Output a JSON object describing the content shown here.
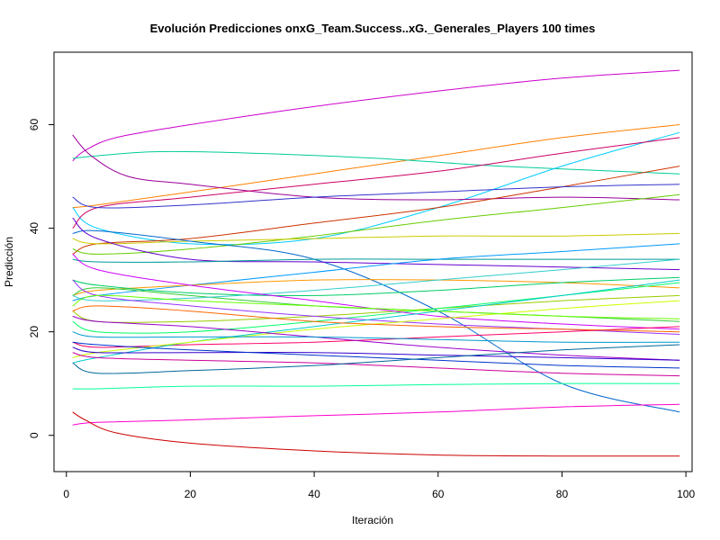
{
  "chart_data": {
    "type": "line",
    "title": "Evolución Predicciones onxG_Team.Success..xG._Generales_Players 100 times",
    "xlabel": "Iteración",
    "ylabel": "Predicción",
    "xlim": [
      -2,
      101
    ],
    "ylim": [
      -7,
      74
    ],
    "xticks": [
      0,
      20,
      40,
      60,
      80,
      100
    ],
    "yticks": [
      0,
      20,
      40,
      60
    ],
    "grid": false,
    "legend": "none",
    "series": [
      {
        "color": "#cc00cc",
        "points": [
          [
            1,
            53
          ],
          [
            3,
            55
          ],
          [
            8,
            57.5
          ],
          [
            20,
            60
          ],
          [
            40,
            63.5
          ],
          [
            60,
            66.5
          ],
          [
            80,
            69
          ],
          [
            99,
            70.5
          ]
        ]
      },
      {
        "color": "#ff8000",
        "points": [
          [
            1,
            44
          ],
          [
            5,
            44.5
          ],
          [
            20,
            47
          ],
          [
            40,
            50.5
          ],
          [
            60,
            54
          ],
          [
            80,
            57.5
          ],
          [
            99,
            60
          ]
        ]
      },
      {
        "color": "#00cc99",
        "points": [
          [
            1,
            53.5
          ],
          [
            5,
            54
          ],
          [
            15,
            54.8
          ],
          [
            30,
            54.5
          ],
          [
            50,
            53.5
          ],
          [
            70,
            52
          ],
          [
            99,
            50.5
          ]
        ]
      },
      {
        "color": "#00ccff",
        "points": [
          [
            1,
            44
          ],
          [
            5,
            40
          ],
          [
            20,
            37
          ],
          [
            40,
            38
          ],
          [
            60,
            44
          ],
          [
            80,
            52
          ],
          [
            99,
            58.5
          ]
        ]
      },
      {
        "color": "#990099",
        "points": [
          [
            1,
            58
          ],
          [
            4,
            54
          ],
          [
            10,
            50
          ],
          [
            20,
            48.5
          ],
          [
            40,
            46
          ],
          [
            60,
            45.5
          ],
          [
            80,
            46
          ],
          [
            99,
            45.5
          ]
        ]
      },
      {
        "color": "#cc0066",
        "points": [
          [
            1,
            40
          ],
          [
            5,
            44
          ],
          [
            20,
            46
          ],
          [
            40,
            48.5
          ],
          [
            60,
            51
          ],
          [
            80,
            54.5
          ],
          [
            99,
            57.5
          ]
        ]
      },
      {
        "color": "#cc3300",
        "points": [
          [
            1,
            35
          ],
          [
            5,
            37
          ],
          [
            20,
            38
          ],
          [
            40,
            41
          ],
          [
            60,
            44
          ],
          [
            80,
            48
          ],
          [
            99,
            52
          ]
        ]
      },
      {
        "color": "#3333cc",
        "points": [
          [
            1,
            46
          ],
          [
            5,
            44
          ],
          [
            20,
            44.5
          ],
          [
            40,
            46
          ],
          [
            60,
            47
          ],
          [
            80,
            48
          ],
          [
            99,
            48.5
          ]
        ]
      },
      {
        "color": "#66cc00",
        "points": [
          [
            1,
            36
          ],
          [
            5,
            35
          ],
          [
            20,
            36
          ],
          [
            40,
            38.5
          ],
          [
            60,
            41.5
          ],
          [
            80,
            44
          ],
          [
            99,
            46.5
          ]
        ]
      },
      {
        "color": "#cccc00",
        "points": [
          [
            1,
            38
          ],
          [
            5,
            37
          ],
          [
            20,
            37.5
          ],
          [
            40,
            38
          ],
          [
            60,
            38.5
          ],
          [
            80,
            38.5
          ],
          [
            99,
            39
          ]
        ]
      },
      {
        "color": "#0066cc",
        "points": [
          [
            1,
            39
          ],
          [
            5,
            39.5
          ],
          [
            20,
            37.5
          ],
          [
            40,
            34
          ],
          [
            60,
            24
          ],
          [
            80,
            10
          ],
          [
            99,
            4.5
          ]
        ]
      },
      {
        "color": "#6600cc",
        "points": [
          [
            1,
            42
          ],
          [
            5,
            38
          ],
          [
            20,
            34
          ],
          [
            40,
            33.5
          ],
          [
            60,
            33
          ],
          [
            80,
            32.5
          ],
          [
            99,
            32
          ]
        ]
      },
      {
        "color": "#009999",
        "points": [
          [
            1,
            34
          ],
          [
            5,
            33.5
          ],
          [
            20,
            33.5
          ],
          [
            40,
            34
          ],
          [
            60,
            34
          ],
          [
            80,
            34
          ],
          [
            99,
            34
          ]
        ]
      },
      {
        "color": "#0099ff",
        "points": [
          [
            1,
            26
          ],
          [
            5,
            27
          ],
          [
            20,
            29
          ],
          [
            40,
            31.5
          ],
          [
            60,
            34
          ],
          [
            80,
            35.5
          ],
          [
            99,
            37
          ]
        ]
      },
      {
        "color": "#ff9900",
        "points": [
          [
            1,
            27
          ],
          [
            5,
            28
          ],
          [
            20,
            29
          ],
          [
            40,
            30
          ],
          [
            60,
            30
          ],
          [
            80,
            29.5
          ],
          [
            99,
            28.5
          ]
        ]
      },
      {
        "color": "#00cc66",
        "points": [
          [
            1,
            30
          ],
          [
            5,
            29
          ],
          [
            20,
            27.5
          ],
          [
            40,
            27
          ],
          [
            60,
            28
          ],
          [
            80,
            29.5
          ],
          [
            99,
            30.5
          ]
        ]
      },
      {
        "color": "#33cc33",
        "points": [
          [
            1,
            27
          ],
          [
            5,
            28.5
          ],
          [
            20,
            27
          ],
          [
            40,
            25
          ],
          [
            60,
            24
          ],
          [
            80,
            23
          ],
          [
            99,
            22
          ]
        ]
      },
      {
        "color": "#99cc00",
        "points": [
          [
            1,
            24
          ],
          [
            5,
            22
          ],
          [
            20,
            22
          ],
          [
            40,
            23
          ],
          [
            60,
            24.5
          ],
          [
            80,
            26
          ],
          [
            99,
            27
          ]
        ]
      },
      {
        "color": "#00ff66",
        "points": [
          [
            1,
            22
          ],
          [
            5,
            20
          ],
          [
            20,
            20
          ],
          [
            40,
            22
          ],
          [
            60,
            24.5
          ],
          [
            80,
            27
          ],
          [
            99,
            29.5
          ]
        ]
      },
      {
        "color": "#33cccc",
        "points": [
          [
            1,
            27
          ],
          [
            5,
            26
          ],
          [
            20,
            26.5
          ],
          [
            40,
            28
          ],
          [
            60,
            30
          ],
          [
            80,
            32
          ],
          [
            99,
            34
          ]
        ]
      },
      {
        "color": "#cc00ff",
        "points": [
          [
            1,
            35
          ],
          [
            5,
            32
          ],
          [
            20,
            29
          ],
          [
            40,
            26
          ],
          [
            60,
            23
          ],
          [
            80,
            21.5
          ],
          [
            99,
            20.5
          ]
        ]
      },
      {
        "color": "#9933ff",
        "points": [
          [
            1,
            30
          ],
          [
            5,
            27
          ],
          [
            20,
            25
          ],
          [
            40,
            23
          ],
          [
            60,
            21.5
          ],
          [
            80,
            20.5
          ],
          [
            99,
            19.5
          ]
        ]
      },
      {
        "color": "#ff0066",
        "points": [
          [
            1,
            18
          ],
          [
            5,
            17
          ],
          [
            20,
            17.5
          ],
          [
            40,
            18
          ],
          [
            60,
            19
          ],
          [
            80,
            20
          ],
          [
            99,
            21
          ]
        ]
      },
      {
        "color": "#00cccc",
        "points": [
          [
            1,
            14
          ],
          [
            5,
            15
          ],
          [
            20,
            18
          ],
          [
            40,
            21
          ],
          [
            60,
            24
          ],
          [
            80,
            27
          ],
          [
            99,
            30
          ]
        ]
      },
      {
        "color": "#ccff00",
        "points": [
          [
            1,
            15
          ],
          [
            5,
            16
          ],
          [
            20,
            18
          ],
          [
            40,
            20.5
          ],
          [
            60,
            22.5
          ],
          [
            80,
            24.5
          ],
          [
            99,
            26
          ]
        ]
      },
      {
        "color": "#9900cc",
        "points": [
          [
            1,
            23
          ],
          [
            5,
            22
          ],
          [
            20,
            21
          ],
          [
            40,
            19
          ],
          [
            60,
            17
          ],
          [
            80,
            15.5
          ],
          [
            99,
            14.5
          ]
        ]
      },
      {
        "color": "#3300cc",
        "points": [
          [
            1,
            17
          ],
          [
            5,
            16
          ],
          [
            20,
            16
          ],
          [
            40,
            16
          ],
          [
            60,
            15.5
          ],
          [
            80,
            15
          ],
          [
            99,
            14.5
          ]
        ]
      },
      {
        "color": "#0033cc",
        "points": [
          [
            1,
            18
          ],
          [
            5,
            17.5
          ],
          [
            20,
            16.5
          ],
          [
            40,
            15.5
          ],
          [
            60,
            14.5
          ],
          [
            80,
            13.5
          ],
          [
            99,
            13
          ]
        ]
      },
      {
        "color": "#cc0099",
        "points": [
          [
            1,
            16
          ],
          [
            5,
            15
          ],
          [
            20,
            14.5
          ],
          [
            40,
            14
          ],
          [
            60,
            13
          ],
          [
            80,
            12
          ],
          [
            99,
            11.5
          ]
        ]
      },
      {
        "color": "#006699",
        "points": [
          [
            1,
            14
          ],
          [
            5,
            12
          ],
          [
            20,
            12.5
          ],
          [
            40,
            13.5
          ],
          [
            60,
            15
          ],
          [
            80,
            16.5
          ],
          [
            99,
            17.5
          ]
        ]
      },
      {
        "color": "#00ff99",
        "points": [
          [
            1,
            9
          ],
          [
            5,
            9
          ],
          [
            20,
            9.5
          ],
          [
            40,
            9.5
          ],
          [
            60,
            9.8
          ],
          [
            80,
            10
          ],
          [
            99,
            10
          ]
        ]
      },
      {
        "color": "#ff00cc",
        "points": [
          [
            1,
            2
          ],
          [
            5,
            2.5
          ],
          [
            20,
            3
          ],
          [
            40,
            3.8
          ],
          [
            60,
            4.5
          ],
          [
            80,
            5.5
          ],
          [
            99,
            6
          ]
        ]
      },
      {
        "color": "#cc0000",
        "points": [
          [
            1,
            4.5
          ],
          [
            3,
            3
          ],
          [
            8,
            0.5
          ],
          [
            20,
            -1.5
          ],
          [
            40,
            -3
          ],
          [
            60,
            -3.8
          ],
          [
            80,
            -4
          ],
          [
            99,
            -4
          ]
        ]
      },
      {
        "color": "#ff6600",
        "points": [
          [
            1,
            24
          ],
          [
            5,
            25
          ],
          [
            20,
            24
          ],
          [
            40,
            22
          ],
          [
            60,
            21
          ],
          [
            80,
            20.5
          ],
          [
            99,
            20
          ]
        ]
      },
      {
        "color": "#66ff00",
        "points": [
          [
            1,
            25
          ],
          [
            5,
            27
          ],
          [
            20,
            26
          ],
          [
            40,
            25
          ],
          [
            60,
            24
          ],
          [
            80,
            23
          ],
          [
            99,
            22.5
          ]
        ]
      },
      {
        "color": "#0099cc",
        "points": [
          [
            1,
            20
          ],
          [
            5,
            19
          ],
          [
            20,
            19
          ],
          [
            40,
            19
          ],
          [
            60,
            18.5
          ],
          [
            80,
            18
          ],
          [
            99,
            18
          ]
        ]
      }
    ]
  }
}
